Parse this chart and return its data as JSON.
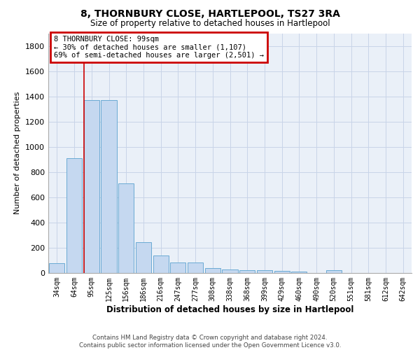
{
  "title": "8, THORNBURY CLOSE, HARTLEPOOL, TS27 3RA",
  "subtitle": "Size of property relative to detached houses in Hartlepool",
  "xlabel": "Distribution of detached houses by size in Hartlepool",
  "ylabel": "Number of detached properties",
  "footer_line1": "Contains HM Land Registry data © Crown copyright and database right 2024.",
  "footer_line2": "Contains public sector information licensed under the Open Government Licence v3.0.",
  "categories": [
    "34sqm",
    "64sqm",
    "95sqm",
    "125sqm",
    "156sqm",
    "186sqm",
    "216sqm",
    "247sqm",
    "277sqm",
    "308sqm",
    "338sqm",
    "368sqm",
    "399sqm",
    "429sqm",
    "460sqm",
    "490sqm",
    "520sqm",
    "551sqm",
    "581sqm",
    "612sqm",
    "642sqm"
  ],
  "values": [
    80,
    910,
    1370,
    1370,
    710,
    245,
    140,
    85,
    85,
    40,
    30,
    20,
    20,
    15,
    10,
    0,
    20,
    0,
    0,
    0,
    0
  ],
  "bar_color": "#c5d8f0",
  "bar_edge_color": "#6aaad4",
  "vline_color": "#cc0000",
  "vline_position": 2.0,
  "annotation_line1": "8 THORNBURY CLOSE: 99sqm",
  "annotation_line2": "← 30% of detached houses are smaller (1,107)",
  "annotation_line3": "69% of semi-detached houses are larger (2,501) →",
  "annotation_box_edgecolor": "#cc0000",
  "ylim": [
    0,
    1900
  ],
  "yticks": [
    0,
    200,
    400,
    600,
    800,
    1000,
    1200,
    1400,
    1600,
    1800
  ],
  "grid_color": "#c8d4e8",
  "background_color": "#eaf0f8",
  "fig_width": 6.0,
  "fig_height": 5.0,
  "dpi": 100
}
